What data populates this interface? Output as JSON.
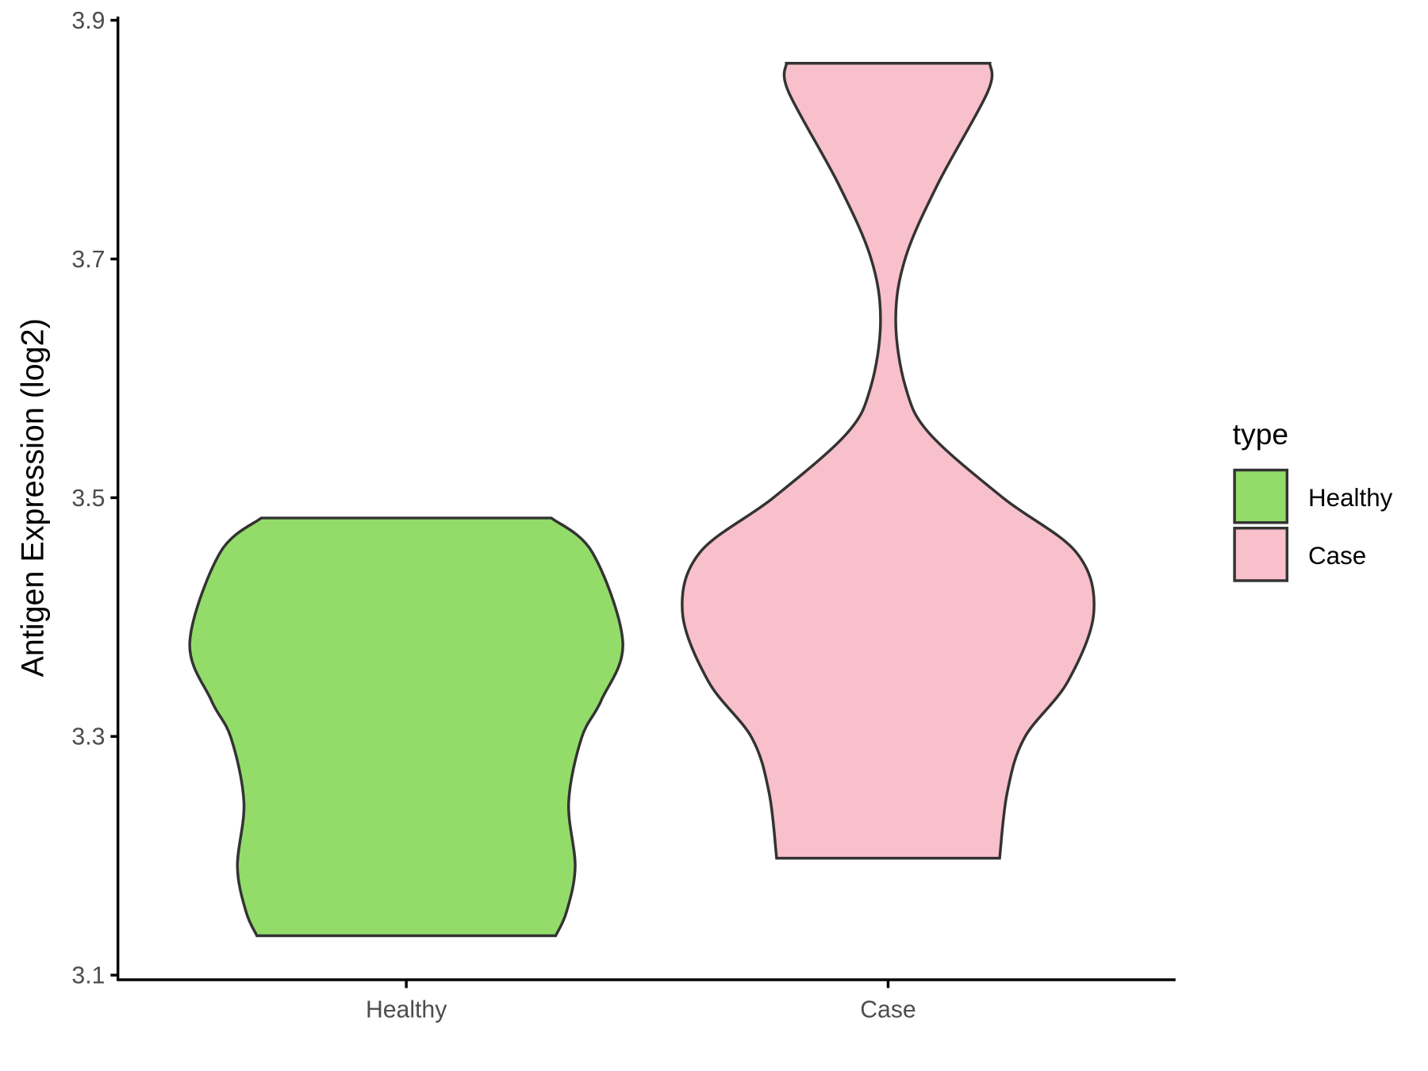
{
  "chart_data": {
    "type": "violin",
    "ylabel": "Antigen Expression (log2)",
    "xlabel": "",
    "ylim": [
      3.1,
      3.9
    ],
    "yticks": [
      "3.1",
      "3.3",
      "3.5",
      "3.7",
      "3.9"
    ],
    "categories": [
      "Healthy",
      "Case"
    ],
    "grid": false,
    "legend": {
      "title": "type",
      "placement": "right",
      "entries": [
        "Healthy",
        "Case"
      ]
    },
    "series": [
      {
        "name": "Healthy",
        "color": "#93DC6A",
        "min": 3.133,
        "max": 3.483,
        "profile": [
          [
            3.483,
            0.67
          ],
          [
            3.454,
            0.86
          ],
          [
            3.379,
            1.0
          ],
          [
            3.33,
            0.9
          ],
          [
            3.299,
            0.81
          ],
          [
            3.245,
            0.75
          ],
          [
            3.191,
            0.78
          ],
          [
            3.153,
            0.74
          ],
          [
            3.133,
            0.69
          ]
        ]
      },
      {
        "name": "Case",
        "color": "#F8C0CB",
        "min": 3.198,
        "max": 3.864,
        "profile": [
          [
            3.864,
            0.47
          ],
          [
            3.84,
            0.46
          ],
          [
            3.763,
            0.23
          ],
          [
            3.701,
            0.08
          ],
          [
            3.649,
            0.035
          ],
          [
            3.593,
            0.08
          ],
          [
            3.554,
            0.19
          ],
          [
            3.5,
            0.53
          ],
          [
            3.454,
            0.87
          ],
          [
            3.404,
            0.95
          ],
          [
            3.346,
            0.83
          ],
          [
            3.299,
            0.63
          ],
          [
            3.253,
            0.55
          ],
          [
            3.198,
            0.515
          ]
        ]
      }
    ]
  }
}
